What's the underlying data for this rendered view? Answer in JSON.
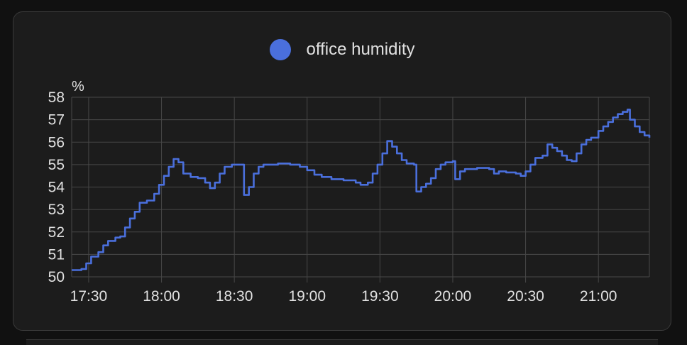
{
  "chart_data": {
    "type": "line",
    "series": [
      {
        "name": "office humidity",
        "color": "#4a6fdc",
        "step": true,
        "points": [
          [
            "17:23",
            50.3
          ],
          [
            "17:27",
            50.35
          ],
          [
            "17:29",
            50.6
          ],
          [
            "17:31",
            50.9
          ],
          [
            "17:34",
            51.1
          ],
          [
            "17:36",
            51.4
          ],
          [
            "17:38",
            51.6
          ],
          [
            "17:41",
            51.75
          ],
          [
            "17:43",
            51.8
          ],
          [
            "17:45",
            52.2
          ],
          [
            "17:47",
            52.6
          ],
          [
            "17:49",
            52.9
          ],
          [
            "17:51",
            53.3
          ],
          [
            "17:54",
            53.4
          ],
          [
            "17:57",
            53.7
          ],
          [
            "17:59",
            54.1
          ],
          [
            "18:01",
            54.5
          ],
          [
            "18:03",
            54.9
          ],
          [
            "18:05",
            55.25
          ],
          [
            "18:07",
            55.1
          ],
          [
            "18:09",
            54.6
          ],
          [
            "18:12",
            54.45
          ],
          [
            "18:15",
            54.4
          ],
          [
            "18:18",
            54.2
          ],
          [
            "18:20",
            53.95
          ],
          [
            "18:22",
            54.2
          ],
          [
            "18:24",
            54.6
          ],
          [
            "18:26",
            54.9
          ],
          [
            "18:29",
            55.0
          ],
          [
            "18:33",
            55.0
          ],
          [
            "18:34",
            53.65
          ],
          [
            "18:36",
            54.0
          ],
          [
            "18:38",
            54.6
          ],
          [
            "18:40",
            54.9
          ],
          [
            "18:42",
            55.0
          ],
          [
            "18:48",
            55.05
          ],
          [
            "18:53",
            55.0
          ],
          [
            "18:57",
            54.9
          ],
          [
            "19:00",
            54.75
          ],
          [
            "19:03",
            54.55
          ],
          [
            "19:06",
            54.45
          ],
          [
            "19:10",
            54.35
          ],
          [
            "19:15",
            54.3
          ],
          [
            "19:20",
            54.2
          ],
          [
            "19:22",
            54.1
          ],
          [
            "19:25",
            54.2
          ],
          [
            "19:27",
            54.6
          ],
          [
            "19:29",
            55.0
          ],
          [
            "19:31",
            55.5
          ],
          [
            "19:33",
            56.05
          ],
          [
            "19:35",
            55.8
          ],
          [
            "19:37",
            55.5
          ],
          [
            "19:39",
            55.2
          ],
          [
            "19:41",
            55.05
          ],
          [
            "19:44",
            55.0
          ],
          [
            "19:45",
            53.8
          ],
          [
            "19:47",
            54.0
          ],
          [
            "19:49",
            54.15
          ],
          [
            "19:51",
            54.4
          ],
          [
            "19:53",
            54.8
          ],
          [
            "19:55",
            55.0
          ],
          [
            "19:57",
            55.1
          ],
          [
            "20:00",
            55.15
          ],
          [
            "20:01",
            54.35
          ],
          [
            "20:03",
            54.7
          ],
          [
            "20:05",
            54.8
          ],
          [
            "20:10",
            54.85
          ],
          [
            "20:15",
            54.8
          ],
          [
            "20:17",
            54.6
          ],
          [
            "20:19",
            54.7
          ],
          [
            "20:22",
            54.65
          ],
          [
            "20:26",
            54.6
          ],
          [
            "20:28",
            54.5
          ],
          [
            "20:30",
            54.7
          ],
          [
            "20:32",
            55.0
          ],
          [
            "20:34",
            55.3
          ],
          [
            "20:37",
            55.4
          ],
          [
            "20:39",
            55.9
          ],
          [
            "20:41",
            55.75
          ],
          [
            "20:43",
            55.6
          ],
          [
            "20:45",
            55.4
          ],
          [
            "20:47",
            55.2
          ],
          [
            "20:49",
            55.15
          ],
          [
            "20:51",
            55.5
          ],
          [
            "20:53",
            55.9
          ],
          [
            "20:55",
            56.1
          ],
          [
            "20:57",
            56.2
          ],
          [
            "21:00",
            56.5
          ],
          [
            "21:02",
            56.7
          ],
          [
            "21:04",
            56.9
          ],
          [
            "21:06",
            57.1
          ],
          [
            "21:08",
            57.25
          ],
          [
            "21:10",
            57.35
          ],
          [
            "21:12",
            57.45
          ],
          [
            "21:13",
            57.0
          ],
          [
            "21:15",
            56.7
          ],
          [
            "21:17",
            56.45
          ],
          [
            "21:19",
            56.3
          ],
          [
            "21:21",
            56.2
          ]
        ]
      }
    ],
    "x_range": [
      "17:23",
      "21:21"
    ],
    "x_ticks": [
      "17:30",
      "18:00",
      "18:30",
      "19:00",
      "19:30",
      "20:00",
      "20:30",
      "21:00"
    ],
    "y_ticks": [
      "50",
      "51",
      "52",
      "53",
      "54",
      "55",
      "56",
      "57",
      "58"
    ],
    "ylim": [
      50,
      58
    ],
    "y_unit": "%",
    "grid": true,
    "legend": "top-center"
  }
}
